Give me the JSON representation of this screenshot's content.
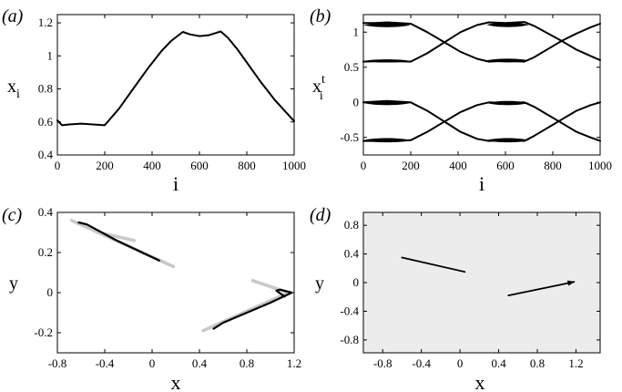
{
  "chart_data": [
    {
      "id": "a",
      "type": "line",
      "panel_label": "(a)",
      "xlabel": "i",
      "ylabel": "x",
      "ylabel_sub": "i",
      "xlim": [
        0,
        1000
      ],
      "ylim": [
        0.4,
        1.25
      ],
      "xticks": [
        0,
        200,
        400,
        600,
        800,
        1000
      ],
      "xtick_labels": [
        "0",
        "200",
        "400",
        "600",
        "800",
        "1000"
      ],
      "yticks": [
        0.4,
        0.6,
        0.8,
        1.0,
        1.2
      ],
      "ytick_labels": [
        "0.4",
        "0.6",
        "0.8",
        "1",
        "1.2"
      ],
      "series": [
        {
          "name": "x_i",
          "color": "#000000",
          "x": [
            0,
            20,
            50,
            100,
            150,
            200,
            260,
            320,
            380,
            440,
            480,
            530,
            560,
            600,
            640,
            690,
            720,
            760,
            800,
            860,
            920,
            1000
          ],
          "y": [
            0.61,
            0.58,
            0.585,
            0.59,
            0.585,
            0.58,
            0.68,
            0.8,
            0.92,
            1.03,
            1.09,
            1.145,
            1.13,
            1.12,
            1.125,
            1.148,
            1.11,
            1.04,
            0.96,
            0.84,
            0.73,
            0.605
          ]
        }
      ]
    },
    {
      "id": "b",
      "type": "line",
      "panel_label": "(b)",
      "xlabel": "i",
      "ylabel": "x",
      "ylabel_sup": "t",
      "ylabel_sub": "i",
      "xlim": [
        0,
        1000
      ],
      "ylim": [
        -0.75,
        1.25
      ],
      "xticks": [
        0,
        200,
        400,
        600,
        800,
        1000
      ],
      "xtick_labels": [
        "0",
        "200",
        "400",
        "600",
        "800",
        "1000"
      ],
      "yticks": [
        -0.5,
        0,
        0.5,
        1
      ],
      "ytick_labels": [
        "-0.5",
        "0",
        "0.5",
        "1"
      ],
      "series": [
        {
          "name": "upper-rising",
          "color": "#000000",
          "x": [
            0,
            50,
            100,
            150,
            200,
            270,
            340,
            410,
            480,
            530,
            600,
            680,
            720,
            780,
            840,
            900,
            960,
            1000
          ],
          "y": [
            0.58,
            0.585,
            0.59,
            0.585,
            0.58,
            0.7,
            0.85,
            1.0,
            1.1,
            1.14,
            1.13,
            1.145,
            1.09,
            0.98,
            0.87,
            0.75,
            0.66,
            0.6
          ]
        },
        {
          "name": "upper-falling",
          "color": "#000000",
          "x": [
            0,
            50,
            100,
            150,
            200,
            270,
            340,
            410,
            480,
            530,
            600,
            680,
            720,
            780,
            840,
            900,
            960,
            1000
          ],
          "y": [
            1.13,
            1.13,
            1.14,
            1.13,
            1.12,
            1.0,
            0.86,
            0.72,
            0.62,
            0.58,
            0.59,
            0.58,
            0.64,
            0.76,
            0.88,
            0.98,
            1.07,
            1.12
          ]
        },
        {
          "name": "lower-rising",
          "color": "#000000",
          "x": [
            0,
            50,
            100,
            150,
            200,
            270,
            340,
            410,
            480,
            530,
            600,
            680,
            720,
            780,
            840,
            900,
            960,
            1000
          ],
          "y": [
            -0.55,
            -0.55,
            -0.54,
            -0.55,
            -0.54,
            -0.42,
            -0.28,
            -0.14,
            -0.04,
            0.0,
            -0.01,
            0.0,
            -0.06,
            -0.18,
            -0.3,
            -0.42,
            -0.5,
            -0.55
          ]
        },
        {
          "name": "lower-falling",
          "color": "#000000",
          "x": [
            0,
            50,
            100,
            150,
            200,
            270,
            340,
            410,
            480,
            530,
            600,
            680,
            720,
            780,
            840,
            900,
            960,
            1000
          ],
          "y": [
            0.0,
            0.01,
            0.02,
            0.01,
            0.0,
            -0.12,
            -0.27,
            -0.42,
            -0.52,
            -0.55,
            -0.54,
            -0.55,
            -0.48,
            -0.36,
            -0.24,
            -0.12,
            -0.04,
            0.0
          ]
        }
      ],
      "bands": [
        {
          "x": [
            0,
            200
          ],
          "y": [
            1.06,
            1.14
          ]
        },
        {
          "x": [
            0,
            200
          ],
          "y": [
            0.56,
            0.62
          ]
        },
        {
          "x": [
            0,
            200
          ],
          "y": [
            -0.05,
            0.03
          ]
        },
        {
          "x": [
            0,
            200
          ],
          "y": [
            -0.58,
            -0.5
          ]
        },
        {
          "x": [
            520,
            700
          ],
          "y": [
            1.06,
            1.15
          ]
        },
        {
          "x": [
            520,
            700
          ],
          "y": [
            0.56,
            0.63
          ]
        },
        {
          "x": [
            520,
            700
          ],
          "y": [
            -0.05,
            0.03
          ]
        },
        {
          "x": [
            520,
            700
          ],
          "y": [
            -0.58,
            -0.5
          ]
        }
      ]
    },
    {
      "id": "c",
      "type": "line",
      "panel_label": "(c)",
      "xlabel": "x",
      "ylabel": "y",
      "xlim": [
        -0.8,
        1.2
      ],
      "ylim": [
        -0.3,
        0.4
      ],
      "xticks": [
        -0.8,
        -0.4,
        0,
        0.4,
        0.8,
        1.2
      ],
      "xtick_labels": [
        "-0.8",
        "-0.4",
        "0",
        "0.4",
        "0.8",
        "1.2"
      ],
      "yticks": [
        -0.2,
        0,
        0.2,
        0.4
      ],
      "ytick_labels": [
        "-0.2",
        "0",
        "0.2",
        "0.4"
      ],
      "series": [
        {
          "name": "gray-upper-long",
          "color": "#c8c8c8",
          "width": 3.5,
          "x": [
            -0.68,
            0.18
          ],
          "y": [
            0.36,
            0.13
          ]
        },
        {
          "name": "gray-upper-short",
          "color": "#c8c8c8",
          "width": 3.5,
          "x": [
            -0.45,
            -0.15
          ],
          "y": [
            0.3,
            0.26
          ]
        },
        {
          "name": "gray-lower-short",
          "color": "#c8c8c8",
          "width": 3.5,
          "x": [
            0.85,
            1.15
          ],
          "y": [
            0.06,
            0.0
          ]
        },
        {
          "name": "gray-lower-long",
          "color": "#c8c8c8",
          "width": 3.5,
          "x": [
            0.43,
            1.15
          ],
          "y": [
            -0.19,
            0.0
          ]
        },
        {
          "name": "black-upper",
          "color": "#000000",
          "width": 2.2,
          "x": [
            -0.62,
            -0.55,
            -0.3,
            0.06
          ],
          "y": [
            0.35,
            0.34,
            0.26,
            0.16
          ]
        },
        {
          "name": "black-lower",
          "color": "#000000",
          "width": 2.2,
          "x": [
            1.12,
            1.05,
            1.08,
            1.18,
            1.0,
            0.8,
            0.6,
            0.52
          ],
          "y": [
            -0.02,
            0.01,
            0.015,
            0.0,
            -0.05,
            -0.1,
            -0.15,
            -0.18
          ]
        }
      ]
    },
    {
      "id": "d",
      "type": "line",
      "panel_label": "(d)",
      "xlabel": "x",
      "ylabel": "y",
      "xlim": [
        -1.0,
        1.45
      ],
      "ylim": [
        -0.98,
        0.98
      ],
      "background": "#ececec",
      "xticks": [
        -0.8,
        -0.4,
        0,
        0.4,
        0.8,
        1.2
      ],
      "xtick_labels": [
        "-0.8",
        "-0.4",
        "0",
        "0.4",
        "0.8",
        "1.2"
      ],
      "yticks": [
        -0.8,
        -0.4,
        0,
        0.4,
        0.8
      ],
      "ytick_labels": [
        "-0.8",
        "-0.4",
        "0",
        "0.4",
        "0.8"
      ],
      "series": [
        {
          "name": "segment-upper",
          "color": "#000000",
          "width": 1.8,
          "x": [
            -0.6,
            0.05
          ],
          "y": [
            0.35,
            0.15
          ]
        },
        {
          "name": "segment-lower",
          "color": "#000000",
          "width": 1.8,
          "x": [
            0.5,
            1.18
          ],
          "y": [
            -0.18,
            0.01
          ],
          "arrow": true
        }
      ]
    }
  ]
}
